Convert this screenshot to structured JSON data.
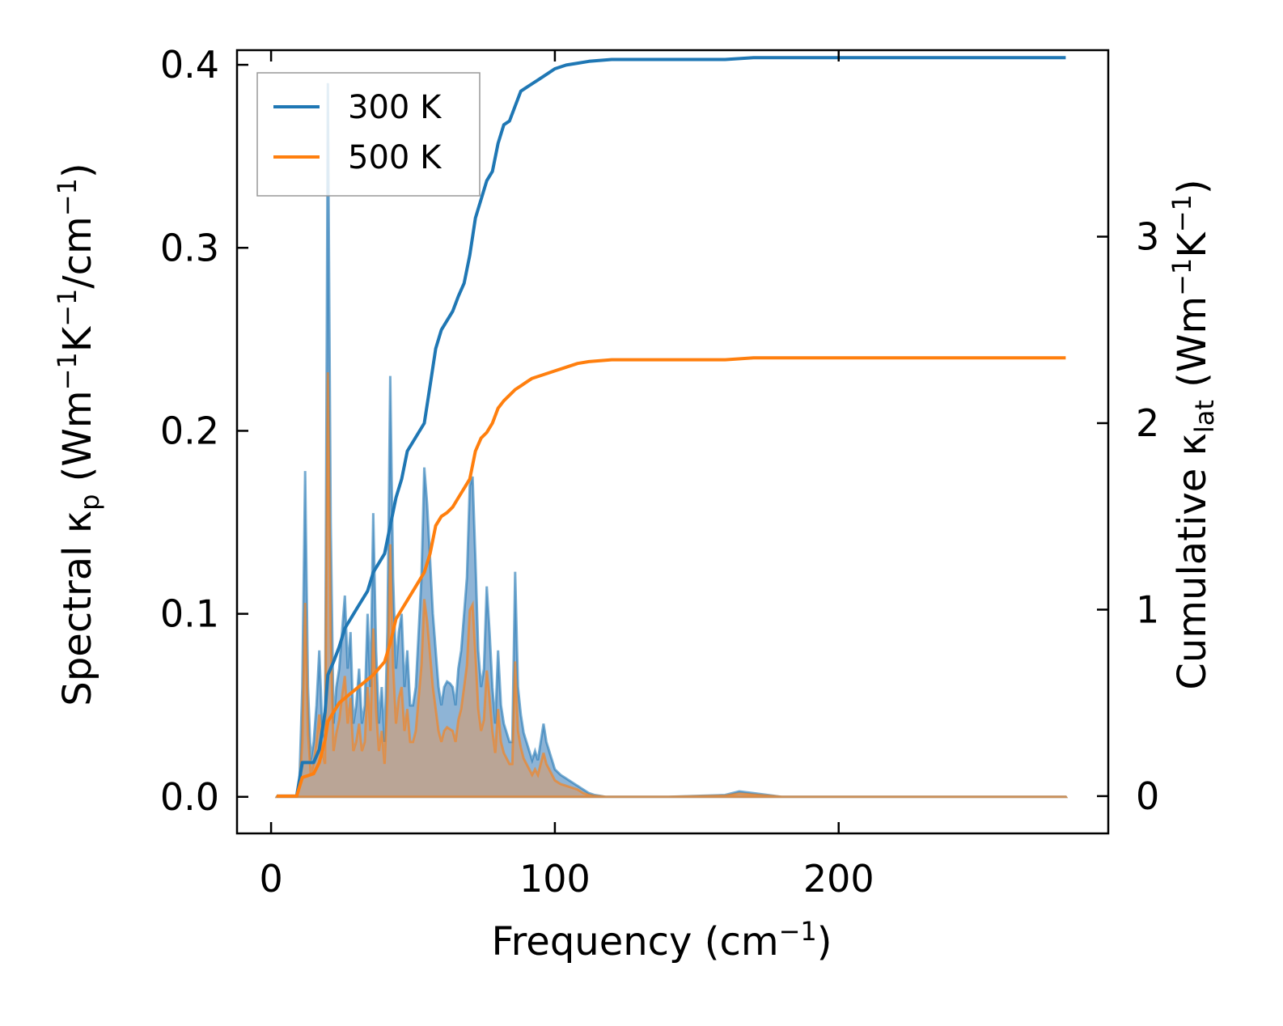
{
  "chart_data": {
    "type": "line",
    "xlabel": {
      "base": "Frequency (cm",
      "sup": "−1",
      "tail": ")"
    },
    "ylabel_left": {
      "base": "Spectral κ",
      "sub": "p",
      "mid": " (Wm",
      "sup1": "−1",
      "mid2": "K",
      "sup2": "−1",
      "mid3": "/cm",
      "sup3": "−1",
      "tail": ")"
    },
    "ylabel_right": {
      "base": "Cumulative κ",
      "sub": "lat",
      "mid": " (Wm",
      "sup1": "−1",
      "mid2": "K",
      "sup2": "−1",
      "tail": ")"
    },
    "xlim": [
      -12,
      295
    ],
    "ylim_left": [
      -0.02,
      0.408
    ],
    "ylim_right": [
      -0.2,
      4.0
    ],
    "x_ticks": [
      0,
      100,
      200
    ],
    "x_tick_labels": [
      "0",
      "100",
      "200"
    ],
    "y_left_ticks": [
      0.0,
      0.1,
      0.2,
      0.3,
      0.4
    ],
    "y_left_tick_labels": [
      "0.0",
      "0.1",
      "0.2",
      "0.3",
      "0.4"
    ],
    "y_right_ticks": [
      0,
      1,
      2,
      3
    ],
    "y_right_tick_labels": [
      "0",
      "1",
      "2",
      "3"
    ],
    "legend": {
      "position": "top-left",
      "entries": [
        "300 K",
        "500 K"
      ]
    },
    "colors": {
      "s300": "#1f77b4",
      "s500": "#ff7f0e",
      "fill300": "#7aa7cf",
      "fill500": "#c8a080"
    },
    "series": [
      {
        "name": "300 K",
        "axis": "right",
        "x": [
          2,
          9,
          11,
          15,
          17,
          19,
          20,
          22,
          24,
          26,
          28,
          30,
          34,
          36,
          40,
          42,
          44,
          46,
          48,
          50,
          54,
          56,
          58,
          60,
          62,
          64,
          66,
          68,
          70,
          72,
          74,
          76,
          78,
          80,
          82,
          84,
          86,
          88,
          90,
          92,
          94,
          96,
          98,
          100,
          104,
          108,
          112,
          120,
          160,
          170,
          280
        ],
        "y": [
          0,
          0,
          0.18,
          0.18,
          0.25,
          0.45,
          0.65,
          0.72,
          0.8,
          0.9,
          0.95,
          1.0,
          1.1,
          1.2,
          1.3,
          1.45,
          1.6,
          1.7,
          1.85,
          1.9,
          2.0,
          2.2,
          2.4,
          2.5,
          2.55,
          2.6,
          2.68,
          2.75,
          2.9,
          3.1,
          3.2,
          3.3,
          3.35,
          3.5,
          3.6,
          3.62,
          3.7,
          3.78,
          3.8,
          3.82,
          3.84,
          3.86,
          3.88,
          3.9,
          3.92,
          3.93,
          3.94,
          3.95,
          3.95,
          3.96,
          3.96
        ]
      },
      {
        "name": "500 K",
        "axis": "right",
        "x": [
          2,
          9,
          11,
          15,
          17,
          19,
          20,
          22,
          24,
          28,
          32,
          36,
          40,
          42,
          44,
          46,
          48,
          50,
          54,
          56,
          58,
          60,
          62,
          64,
          66,
          68,
          70,
          72,
          74,
          76,
          78,
          80,
          82,
          84,
          86,
          88,
          90,
          92,
          96,
          100,
          104,
          108,
          112,
          120,
          160,
          170,
          280
        ],
        "y": [
          0,
          0,
          0.1,
          0.12,
          0.18,
          0.3,
          0.4,
          0.45,
          0.5,
          0.55,
          0.6,
          0.65,
          0.72,
          0.82,
          0.95,
          1.0,
          1.05,
          1.1,
          1.2,
          1.3,
          1.45,
          1.5,
          1.52,
          1.55,
          1.6,
          1.65,
          1.7,
          1.85,
          1.92,
          1.95,
          2.0,
          2.08,
          2.12,
          2.15,
          2.18,
          2.2,
          2.22,
          2.24,
          2.26,
          2.28,
          2.3,
          2.32,
          2.33,
          2.34,
          2.34,
          2.35,
          2.35
        ]
      }
    ],
    "spectral": [
      {
        "name": "300 K",
        "axis": "left",
        "x": [
          2,
          9,
          10,
          11,
          12,
          13,
          14,
          15,
          16,
          17,
          18,
          19,
          20,
          21,
          22,
          23,
          24,
          25,
          26,
          27,
          28,
          29,
          30,
          31,
          32,
          33,
          34,
          35,
          36,
          37,
          38,
          39,
          40,
          41,
          42,
          43,
          44,
          45,
          46,
          47,
          48,
          49,
          50,
          51,
          52,
          53,
          54,
          55,
          56,
          57,
          58,
          59,
          60,
          61,
          62,
          63,
          64,
          65,
          66,
          67,
          68,
          69,
          70,
          71,
          72,
          73,
          74,
          75,
          76,
          77,
          78,
          79,
          80,
          81,
          82,
          83,
          84,
          85,
          86,
          87,
          88,
          89,
          90,
          91,
          92,
          93,
          94,
          95,
          96,
          97,
          98,
          99,
          100,
          102,
          104,
          106,
          108,
          110,
          112,
          114,
          116,
          118,
          120,
          140,
          160,
          165,
          170,
          175,
          180,
          280
        ],
        "y": [
          0,
          0,
          0.01,
          0.06,
          0.178,
          0.06,
          0.02,
          0.03,
          0.05,
          0.08,
          0.04,
          0.03,
          0.39,
          0.15,
          0.04,
          0.06,
          0.07,
          0.09,
          0.11,
          0.07,
          0.09,
          0.04,
          0.05,
          0.07,
          0.04,
          0.05,
          0.1,
          0.06,
          0.155,
          0.08,
          0.04,
          0.06,
          0.03,
          0.09,
          0.23,
          0.12,
          0.07,
          0.09,
          0.1,
          0.06,
          0.08,
          0.05,
          0.05,
          0.06,
          0.09,
          0.12,
          0.18,
          0.16,
          0.13,
          0.1,
          0.08,
          0.06,
          0.05,
          0.06,
          0.063,
          0.062,
          0.06,
          0.05,
          0.07,
          0.08,
          0.1,
          0.12,
          0.17,
          0.175,
          0.13,
          0.08,
          0.06,
          0.07,
          0.115,
          0.09,
          0.06,
          0.04,
          0.08,
          0.05,
          0.04,
          0.035,
          0.03,
          0.03,
          0.123,
          0.06,
          0.045,
          0.035,
          0.03,
          0.025,
          0.02,
          0.025,
          0.02,
          0.03,
          0.04,
          0.03,
          0.025,
          0.02,
          0.015,
          0.012,
          0.01,
          0.008,
          0.006,
          0.004,
          0.002,
          0.001,
          0.0005,
          0,
          0,
          0,
          0.001,
          0.003,
          0.002,
          0.001,
          0,
          0
        ]
      },
      {
        "name": "500 K",
        "axis": "left",
        "x": [
          2,
          9,
          10,
          11,
          12,
          13,
          14,
          15,
          16,
          17,
          18,
          19,
          20,
          21,
          22,
          23,
          24,
          25,
          26,
          27,
          28,
          29,
          30,
          31,
          32,
          33,
          34,
          35,
          36,
          37,
          38,
          39,
          40,
          41,
          42,
          43,
          44,
          45,
          46,
          47,
          48,
          49,
          50,
          51,
          52,
          53,
          54,
          55,
          56,
          57,
          58,
          59,
          60,
          61,
          62,
          63,
          64,
          65,
          66,
          67,
          68,
          69,
          70,
          71,
          72,
          73,
          74,
          75,
          76,
          77,
          78,
          79,
          80,
          81,
          82,
          83,
          84,
          85,
          86,
          87,
          88,
          89,
          90,
          91,
          92,
          93,
          94,
          95,
          96,
          97,
          98,
          99,
          100,
          102,
          104,
          106,
          108,
          110,
          112,
          114,
          116,
          118,
          120,
          140,
          160,
          165,
          170,
          175,
          180,
          280
        ],
        "y": [
          0,
          0,
          0.005,
          0.03,
          0.106,
          0.035,
          0.012,
          0.018,
          0.03,
          0.045,
          0.025,
          0.018,
          0.232,
          0.09,
          0.025,
          0.035,
          0.042,
          0.055,
          0.066,
          0.04,
          0.054,
          0.025,
          0.03,
          0.04,
          0.025,
          0.03,
          0.06,
          0.036,
          0.092,
          0.048,
          0.025,
          0.036,
          0.018,
          0.054,
          0.138,
          0.072,
          0.04,
          0.054,
          0.06,
          0.036,
          0.048,
          0.03,
          0.03,
          0.036,
          0.054,
          0.072,
          0.108,
          0.096,
          0.078,
          0.06,
          0.048,
          0.036,
          0.03,
          0.036,
          0.038,
          0.037,
          0.036,
          0.03,
          0.042,
          0.048,
          0.06,
          0.072,
          0.102,
          0.105,
          0.078,
          0.048,
          0.036,
          0.042,
          0.069,
          0.054,
          0.036,
          0.024,
          0.048,
          0.03,
          0.024,
          0.021,
          0.018,
          0.018,
          0.074,
          0.036,
          0.027,
          0.021,
          0.018,
          0.015,
          0.012,
          0.015,
          0.012,
          0.018,
          0.024,
          0.018,
          0.015,
          0.012,
          0.009,
          0.007,
          0.006,
          0.005,
          0.004,
          0.002,
          0.001,
          0.0005,
          0.0003,
          0,
          0,
          0,
          0.0006,
          0.0018,
          0.0012,
          0.0006,
          0,
          0
        ]
      }
    ]
  }
}
